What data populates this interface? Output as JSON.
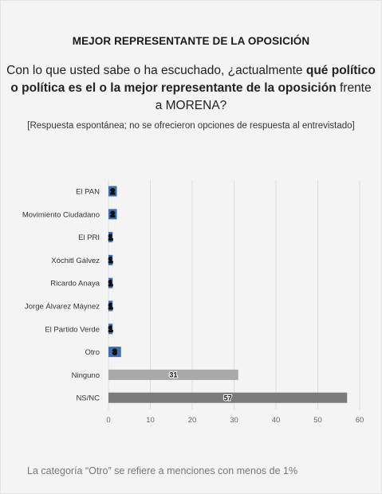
{
  "header": {
    "title": "MEJOR REPRESENTANTE DE LA OPOSICIÓN",
    "question_pre": "Con lo que usted sabe o ha escuchado, ¿actualmente ",
    "question_bold": "qué político o política es el o la mejor representante de la oposición",
    "question_post": " frente a MORENA?",
    "note": "[Respuesta espontánea; no se ofrecieron opciones de respuesta al entrevistado]"
  },
  "footer": {
    "text": "La categoría “Otro” se refiere a menciones con menos de 1%"
  },
  "chart_data": {
    "type": "bar",
    "orientation": "horizontal",
    "categories": [
      "El PAN",
      "Movimiento Ciudadano",
      "El PRI",
      "Xóchitl Gálvez",
      "Ricardo Anaya",
      "Jorge Álvarez Máynez",
      "El Partido Verde",
      "Otro",
      "Ninguno",
      "NS/NC"
    ],
    "values": [
      2,
      2,
      1,
      1,
      1,
      1,
      1,
      3,
      31,
      57
    ],
    "xticks": [
      0,
      10,
      20,
      30,
      40,
      50,
      60
    ],
    "xlim": [
      0,
      60
    ],
    "grid": true,
    "colors": [
      "#3f6fb0",
      "#3f6fb0",
      "#3f6fb0",
      "#3f6fb0",
      "#3f6fb0",
      "#3f6fb0",
      "#3f6fb0",
      "#3f6fb0",
      "#a9a9a9",
      "#7b7b7b"
    ],
    "title": "",
    "xlabel": "",
    "ylabel": ""
  }
}
